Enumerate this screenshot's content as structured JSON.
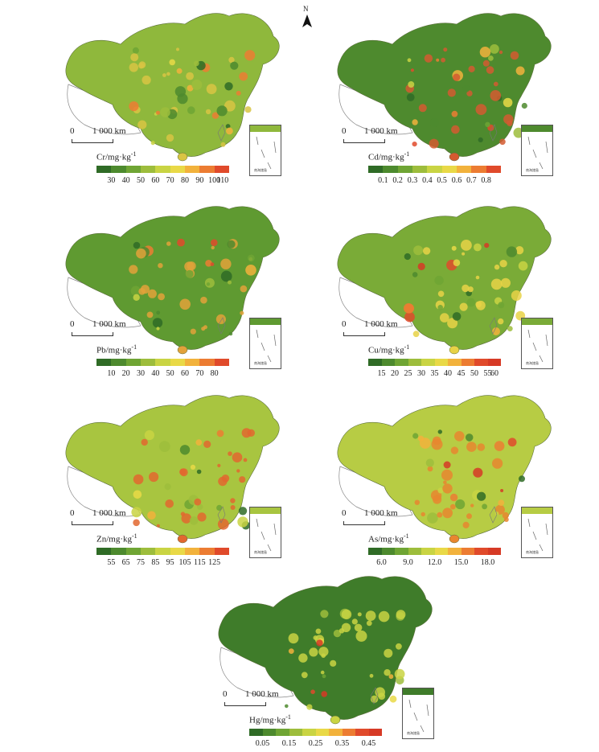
{
  "north_arrow": "N",
  "panels": [
    {
      "id": "cr",
      "label": "Cr/mg·kg",
      "sup": "-1",
      "scale_zero": "0",
      "scale_label": "1 000 km",
      "ticks": [
        "30",
        "40",
        "50",
        "60",
        "70",
        "80",
        "90",
        "100",
        "110"
      ],
      "colors": [
        "#2f6b26",
        "#4d8a2e",
        "#6fa534",
        "#9dbd3c",
        "#c9d443",
        "#e9d947",
        "#f2b23c",
        "#ec7c32",
        "#e04a2b"
      ],
      "map_base": "#8fb83c",
      "map_spots": "#d8c443"
    },
    {
      "id": "cd",
      "label": "Cd/mg·kg",
      "sup": "-1",
      "scale_zero": "0",
      "scale_label": "1 000 km",
      "ticks": [
        "0.1",
        "0.2",
        "0.3",
        "0.4",
        "0.5",
        "0.6",
        "0.7",
        "0.8"
      ],
      "colors": [
        "#2f6b26",
        "#4d8a2e",
        "#6fa534",
        "#9dbd3c",
        "#c9d443",
        "#e9d947",
        "#f2b23c",
        "#ec7c32",
        "#e04a2b"
      ],
      "map_base": "#4e8a2e",
      "map_spots": "#d45a30"
    },
    {
      "id": "pb",
      "label": "Pb/mg·kg",
      "sup": "-1",
      "scale_zero": "0",
      "scale_label": "1 000 km",
      "ticks": [
        "10",
        "20",
        "30",
        "40",
        "50",
        "60",
        "70",
        "80"
      ],
      "colors": [
        "#2f6b26",
        "#4d8a2e",
        "#6fa534",
        "#9dbd3c",
        "#c9d443",
        "#e9d947",
        "#f2b23c",
        "#ec7c32",
        "#e04a2b"
      ],
      "map_base": "#5f9a31",
      "map_spots": "#e2a23a"
    },
    {
      "id": "cu",
      "label": "Cu/mg·kg",
      "sup": "-1",
      "scale_zero": "0",
      "scale_label": "1 000 km",
      "ticks": [
        "15",
        "20",
        "25",
        "30",
        "35",
        "40",
        "45",
        "50",
        "55",
        "60"
      ],
      "colors": [
        "#2f6b26",
        "#4d8a2e",
        "#6fa534",
        "#9dbd3c",
        "#c9d443",
        "#e9d947",
        "#f2b23c",
        "#ec7c32",
        "#e04a2b",
        "#d63a26"
      ],
      "map_base": "#7aab37",
      "map_spots": "#e7d246"
    },
    {
      "id": "zn",
      "label": "Zn/mg·kg",
      "sup": "-1",
      "scale_zero": "0",
      "scale_label": "1 000 km",
      "ticks": [
        "55",
        "65",
        "75",
        "85",
        "95",
        "105",
        "115",
        "125"
      ],
      "colors": [
        "#2f6b26",
        "#4d8a2e",
        "#6fa534",
        "#9dbd3c",
        "#c9d443",
        "#e9d947",
        "#f2b23c",
        "#ec7c32",
        "#e04a2b"
      ],
      "map_base": "#a8c540",
      "map_spots": "#e2672f"
    },
    {
      "id": "as",
      "label": "As/mg·kg",
      "sup": "-1",
      "scale_zero": "0",
      "scale_label": "1 000 km",
      "ticks": [
        "6.0",
        "9.0",
        "12.0",
        "15.0",
        "18.0"
      ],
      "colors": [
        "#2f6b26",
        "#4d8a2e",
        "#6fa534",
        "#9dbd3c",
        "#c9d443",
        "#e9d947",
        "#f2b23c",
        "#ec7c32",
        "#e04a2b",
        "#d63a26"
      ],
      "map_base": "#b7cc44",
      "map_spots": "#e8862f"
    },
    {
      "id": "hg",
      "label": "Hg/mg·kg",
      "sup": "-1",
      "scale_zero": "0",
      "scale_label": "1 000 km",
      "ticks": [
        "0.05",
        "0.15",
        "0.25",
        "0.35",
        "0.45"
      ],
      "colors": [
        "#2f6b26",
        "#4d8a2e",
        "#6fa534",
        "#9dbd3c",
        "#c9d443",
        "#e9d947",
        "#f2b23c",
        "#ec7c32",
        "#e04a2b",
        "#d63a26"
      ],
      "map_base": "#3f7c2a",
      "map_spots": "#c9d443"
    }
  ],
  "inset_label": "南海諸島"
}
